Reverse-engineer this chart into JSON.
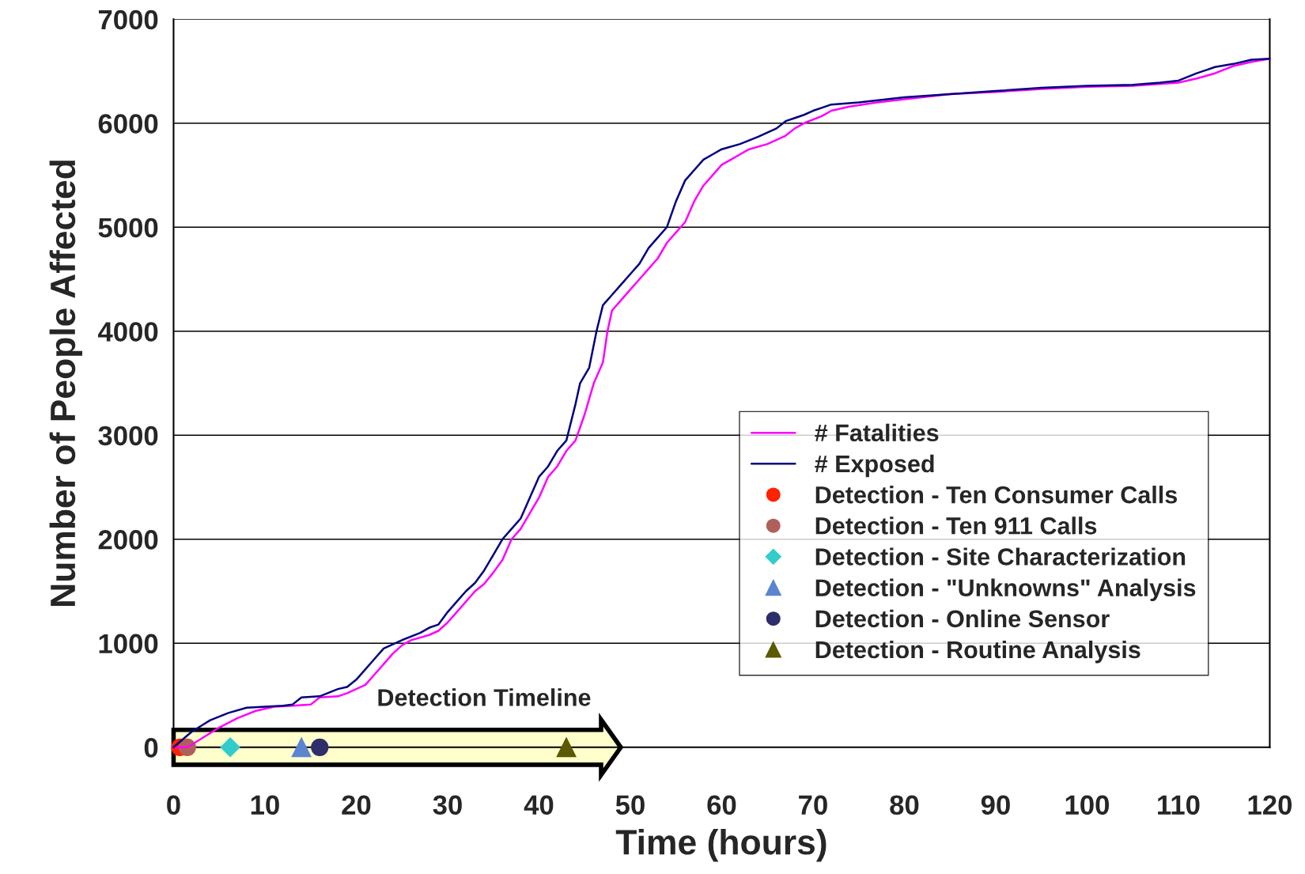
{
  "chart_data": {
    "type": "line",
    "xlabel": "Time (hours)",
    "ylabel": "Number of People Affected",
    "xlim": [
      0,
      120
    ],
    "xticks": [
      0,
      10,
      20,
      30,
      40,
      50,
      60,
      70,
      80,
      90,
      100,
      110,
      120
    ],
    "ylim": [
      0,
      7000
    ],
    "yticks": [
      0,
      1000,
      2000,
      3000,
      4000,
      5000,
      6000,
      7000
    ],
    "grid": "y",
    "legend": "right",
    "marker": "none",
    "line_style": "solid",
    "annotations": [
      "Detection Timeline"
    ],
    "series": [
      {
        "name": "# Fatalities",
        "color": "#ff00ff",
        "x": [
          0,
          1.5,
          3,
          5,
          7,
          9,
          11,
          13,
          15,
          16,
          18,
          19,
          20,
          21,
          22,
          23,
          24,
          25,
          26,
          28,
          29,
          30,
          31,
          32,
          33,
          34,
          35,
          36,
          37,
          38,
          39,
          40,
          41,
          42,
          43,
          44,
          45,
          46,
          47,
          47.5,
          48,
          49,
          50,
          51,
          52,
          53,
          54,
          55,
          56,
          57,
          58,
          59,
          60,
          61,
          62,
          63,
          65,
          67,
          68,
          69,
          71,
          72,
          74,
          77,
          80,
          85,
          90,
          95,
          100,
          105,
          110,
          112,
          114,
          116,
          118,
          120
        ],
        "values": [
          0,
          0,
          80,
          190,
          280,
          350,
          390,
          400,
          410,
          480,
          490,
          520,
          560,
          600,
          700,
          800,
          900,
          980,
          1030,
          1080,
          1120,
          1200,
          1300,
          1400,
          1500,
          1570,
          1680,
          1800,
          2000,
          2100,
          2250,
          2400,
          2600,
          2700,
          2850,
          2950,
          3200,
          3500,
          3700,
          4000,
          4200,
          4300,
          4400,
          4500,
          4600,
          4700,
          4850,
          4950,
          5050,
          5250,
          5400,
          5500,
          5600,
          5650,
          5700,
          5750,
          5800,
          5880,
          5950,
          6000,
          6070,
          6120,
          6160,
          6200,
          6230,
          6280,
          6300,
          6330,
          6350,
          6360,
          6390,
          6430,
          6480,
          6550,
          6590,
          6620
        ]
      },
      {
        "name": "# Exposed",
        "color": "#000080",
        "x": [
          0,
          2,
          4,
          6,
          8,
          10,
          12,
          13,
          14,
          16,
          18,
          19,
          20,
          22,
          23,
          25,
          27,
          28,
          29,
          30,
          31,
          32,
          33,
          34,
          35,
          36,
          37,
          38,
          39,
          40,
          41,
          42,
          43,
          44,
          44.5,
          45.5,
          46.3,
          47,
          48,
          49,
          50,
          51,
          52,
          53,
          54,
          55,
          56,
          57,
          58,
          59,
          60,
          62,
          64,
          66,
          67,
          68,
          69,
          70,
          71,
          72,
          75,
          80,
          85,
          90,
          95,
          100,
          105,
          108,
          110,
          112,
          114,
          116,
          118,
          120
        ],
        "values": [
          0,
          150,
          260,
          330,
          380,
          390,
          400,
          410,
          480,
          490,
          560,
          580,
          650,
          850,
          950,
          1030,
          1100,
          1150,
          1180,
          1300,
          1400,
          1500,
          1580,
          1700,
          1850,
          2000,
          2100,
          2200,
          2400,
          2600,
          2700,
          2850,
          2950,
          3300,
          3500,
          3650,
          4000,
          4250,
          4350,
          4450,
          4550,
          4650,
          4800,
          4900,
          5000,
          5250,
          5450,
          5550,
          5650,
          5700,
          5750,
          5800,
          5870,
          5950,
          6020,
          6050,
          6080,
          6120,
          6150,
          6180,
          6200,
          6250,
          6280,
          6310,
          6340,
          6360,
          6370,
          6390,
          6410,
          6480,
          6540,
          6570,
          6610,
          6620
        ]
      },
      {
        "name": "Detection - Ten Consumer Calls",
        "type": "scatter",
        "marker": "circle",
        "color": "#ff2200",
        "x": [
          0.7
        ],
        "values": [
          0
        ]
      },
      {
        "name": "Detection - Ten 911 Calls",
        "type": "scatter",
        "marker": "circle",
        "color": "#b0605a",
        "x": [
          1.5
        ],
        "values": [
          0
        ]
      },
      {
        "name": "Detection - Site Characterization",
        "type": "scatter",
        "marker": "diamond",
        "color": "#33cccc",
        "x": [
          6.2
        ],
        "values": [
          0
        ]
      },
      {
        "name": "Detection - \"Unknowns\" Analysis",
        "type": "scatter",
        "marker": "triangle",
        "color": "#5b85d0",
        "x": [
          14
        ],
        "values": [
          0
        ]
      },
      {
        "name": "Detection - Online Sensor",
        "type": "scatter",
        "marker": "circle",
        "color": "#2e2e6a",
        "x": [
          16
        ],
        "values": [
          0
        ]
      },
      {
        "name": "Detection - Routine Analysis",
        "type": "scatter",
        "marker": "triangle",
        "color": "#5a5a00",
        "x": [
          43
        ],
        "values": [
          0
        ]
      }
    ]
  }
}
